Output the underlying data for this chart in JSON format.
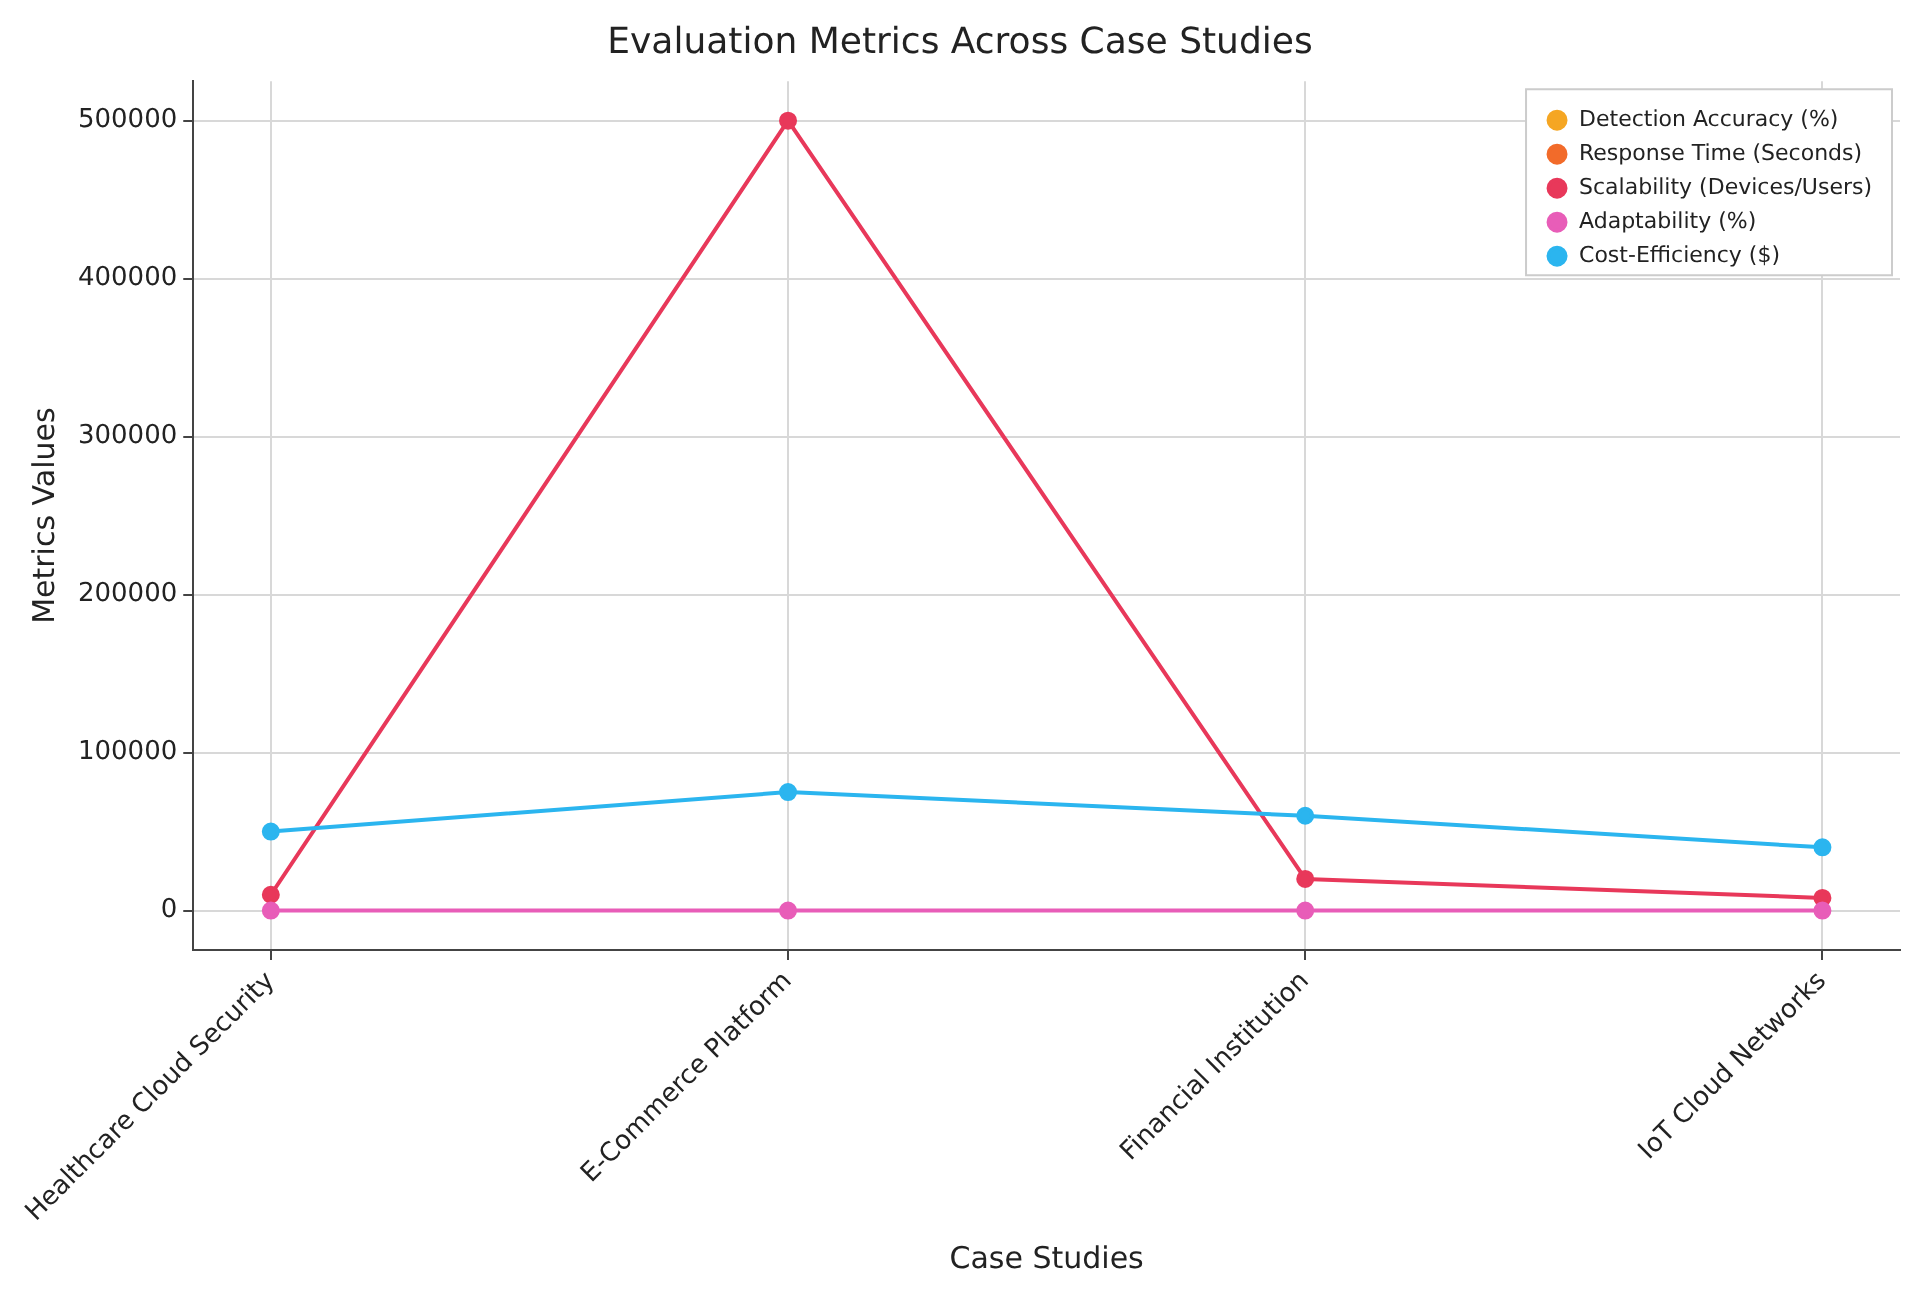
{
  "chart_data": {
    "type": "line",
    "title": "Evaluation Metrics Across Case Studies",
    "xlabel": "Case Studies",
    "ylabel": "Metrics Values",
    "categories": [
      "Healthcare Cloud Security",
      "E-Commerce Platform",
      "Financial Institution",
      "IoT Cloud Networks"
    ],
    "series": [
      {
        "name": "Detection Accuracy (%)",
        "color": "#f5a623",
        "values": [
          null,
          null,
          null,
          null
        ]
      },
      {
        "name": "Response Time (Seconds)",
        "color": "#f26b2a",
        "values": [
          null,
          null,
          null,
          null
        ]
      },
      {
        "name": "Scalability (Devices/Users)",
        "color": "#e8385a",
        "values": [
          10000,
          500000,
          20000,
          8000
        ]
      },
      {
        "name": "Adaptability (%)",
        "color": "#e85db8",
        "values": [
          0,
          0,
          0,
          0
        ]
      },
      {
        "name": "Cost-Efficiency ($)",
        "color": "#2bb5ef",
        "values": [
          50000,
          75000,
          60000,
          40000
        ]
      }
    ],
    "ylim": [
      -25000,
      525000
    ],
    "yticks": [
      0,
      100000,
      200000,
      300000,
      400000,
      500000
    ],
    "grid": true,
    "legend": "top right",
    "marker": "circle",
    "line_style": "solid"
  }
}
